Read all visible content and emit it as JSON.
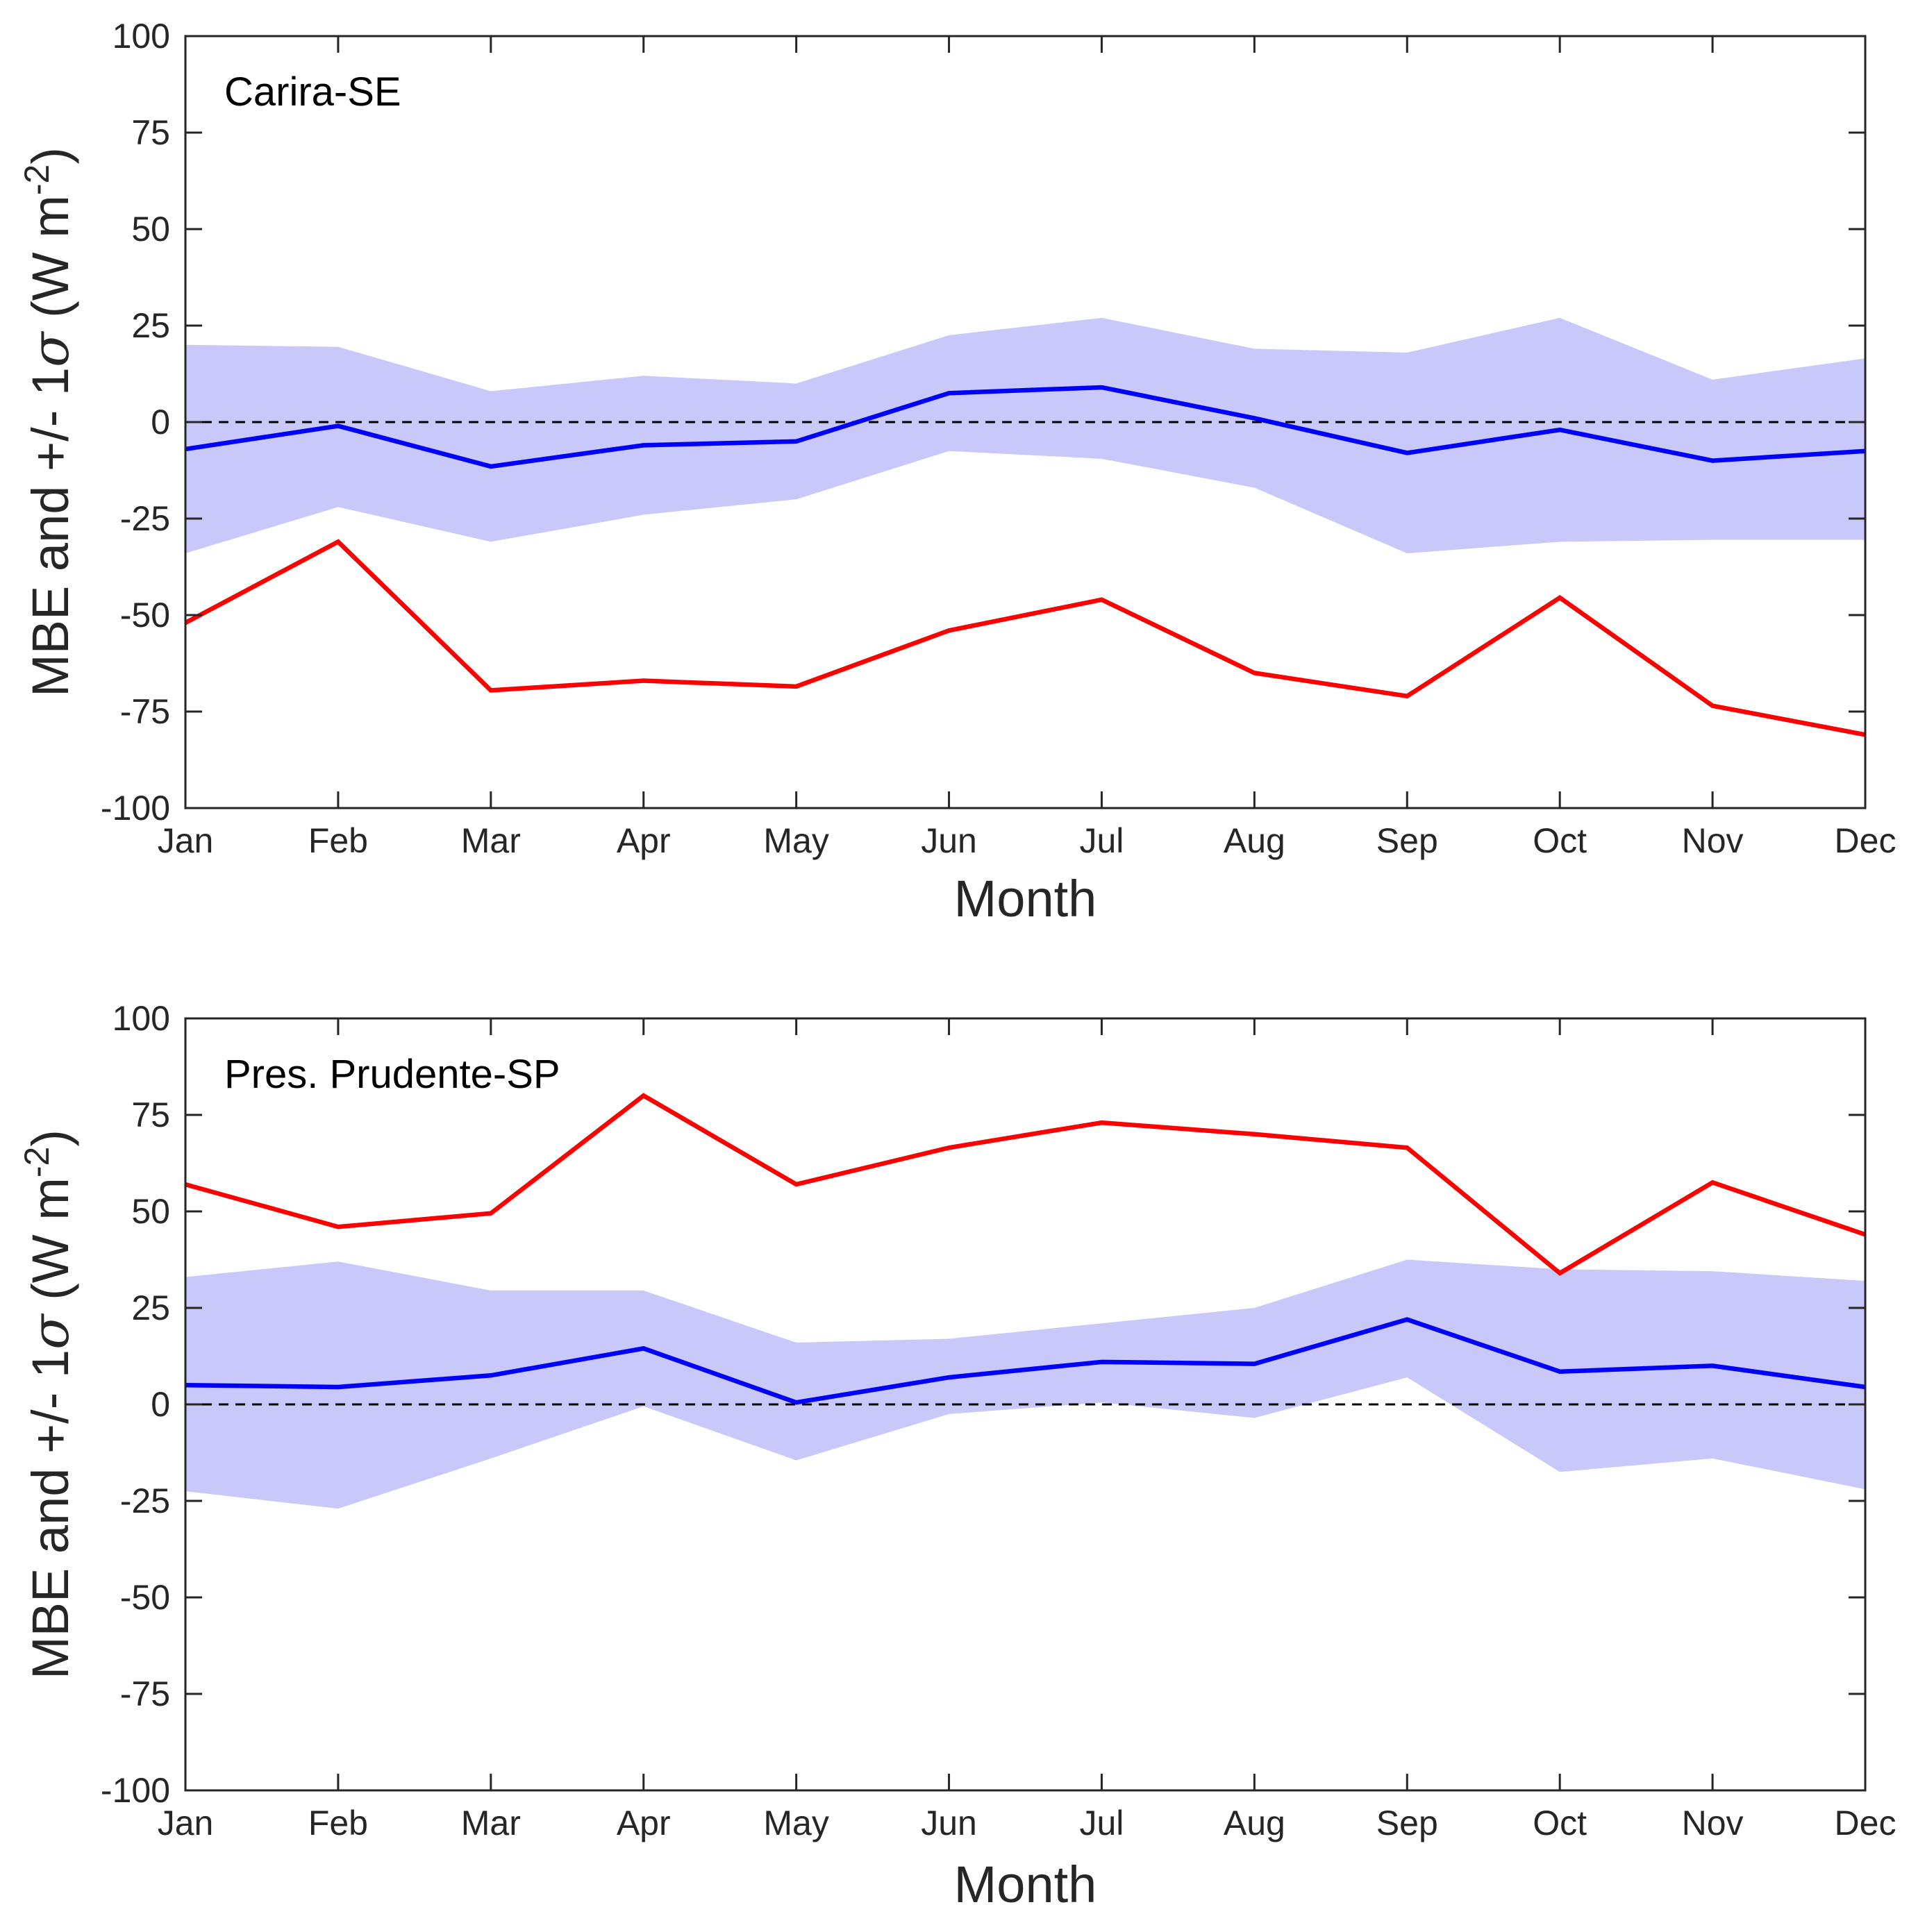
{
  "chart_data": [
    {
      "type": "line",
      "title": "Carira-SE",
      "xlabel": "Month",
      "ylabel": "MBE and +/- 1σ (W m-2)",
      "ylabel_main": "MBE and +/- 1",
      "ylabel_sigma": "σ",
      "ylabel_unit": " (W m",
      "ylabel_exp": "-2",
      "ylabel_close": ")",
      "ylim": [
        -100,
        100
      ],
      "yticks": [
        -100,
        -75,
        -50,
        -25,
        0,
        25,
        50,
        75,
        100
      ],
      "categories": [
        "Jan",
        "Feb",
        "Mar",
        "Apr",
        "May",
        "Jun",
        "Jul",
        "Aug",
        "Sep",
        "Oct",
        "Nov",
        "Dec"
      ],
      "zero_line": 0,
      "band": {
        "name": "+/- 1σ",
        "color": "#c8c8fa",
        "upper": [
          20,
          19.5,
          8,
          12,
          10,
          22.5,
          27,
          19,
          18,
          27,
          11,
          16.5
        ],
        "lower": [
          -34,
          -22,
          -31,
          -24,
          -20,
          -7.5,
          -9.5,
          -17,
          -34,
          -31,
          -30.5,
          -30.5
        ]
      },
      "series": [
        {
          "name": "MBE",
          "color": "#0000ff",
          "values": [
            -7,
            -1,
            -11.5,
            -6,
            -5,
            7.5,
            9,
            1,
            -8,
            -2,
            -10,
            -7.5
          ]
        },
        {
          "name": "red",
          "color": "#ff0000",
          "values": [
            -52,
            -31,
            -69.5,
            -67,
            -68.5,
            -54,
            -46,
            -65,
            -71,
            -45.5,
            -73.5,
            -81
          ]
        }
      ]
    },
    {
      "type": "line",
      "title": "Pres. Prudente-SP",
      "xlabel": "Month",
      "ylabel": "MBE and +/- 1σ (W m-2)",
      "ylabel_main": "MBE and +/- 1",
      "ylabel_sigma": "σ",
      "ylabel_unit": " (W m",
      "ylabel_exp": "-2",
      "ylabel_close": ")",
      "ylim": [
        -100,
        100
      ],
      "yticks": [
        -100,
        -75,
        -50,
        -25,
        0,
        25,
        50,
        75,
        100
      ],
      "categories": [
        "Jan",
        "Feb",
        "Mar",
        "Apr",
        "May",
        "Jun",
        "Jul",
        "Aug",
        "Sep",
        "Oct",
        "Nov",
        "Dec"
      ],
      "zero_line": 0,
      "band": {
        "name": "+/- 1σ",
        "color": "#c8c8fa",
        "upper": [
          33,
          37,
          29.5,
          29.5,
          16,
          17,
          21,
          25,
          37.5,
          35,
          34.5,
          32
        ],
        "lower": [
          -22.5,
          -27,
          -14,
          -0.5,
          -14.5,
          -2.5,
          0.5,
          -3.5,
          7,
          -17.5,
          -14,
          -22
        ]
      },
      "series": [
        {
          "name": "MBE",
          "color": "#0000ff",
          "values": [
            5,
            4.5,
            7.5,
            14.5,
            0.5,
            7,
            11,
            10.5,
            22,
            8.5,
            10,
            4.5
          ]
        },
        {
          "name": "red",
          "color": "#ff0000",
          "values": [
            57,
            46,
            49.5,
            80,
            57,
            66.5,
            73,
            70,
            66.5,
            34,
            57.5,
            44
          ]
        }
      ]
    }
  ]
}
